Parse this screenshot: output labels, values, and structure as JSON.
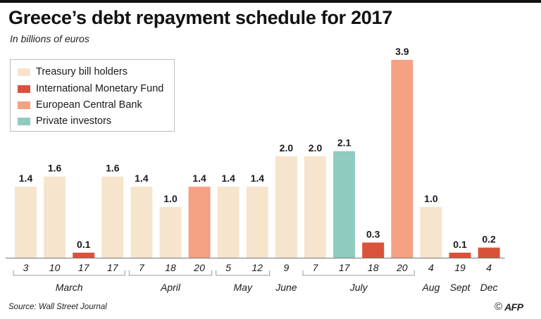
{
  "title": "Greece’s debt repayment schedule for 2017",
  "subtitle": "In billions of euros",
  "source": "Source: Wall Street Journal",
  "credit": {
    "symbol": "©",
    "name": "AFP"
  },
  "legend": [
    {
      "label": "Treasury bill holders",
      "color": "#f7e4cc"
    },
    {
      "label": "International Monetary Fund",
      "color": "#d9533a"
    },
    {
      "label": "European Central Bank",
      "color": "#f5a183"
    },
    {
      "label": "Private investors",
      "color": "#8fcbbf"
    }
  ],
  "chart_data": {
    "type": "bar",
    "title": "Greece’s debt repayment schedule for 2017",
    "subtitle": "In billions of euros",
    "legend_position": "top-left",
    "grid": false,
    "ylim": [
      0,
      3.9
    ],
    "categories": [
      "3",
      "10",
      "17",
      "17",
      "7",
      "18",
      "20",
      "5",
      "12",
      "9",
      "7",
      "17",
      "18",
      "20",
      "4",
      "19",
      "4"
    ],
    "values": [
      1.4,
      1.6,
      0.1,
      1.6,
      1.4,
      1.0,
      1.4,
      1.4,
      1.4,
      2.0,
      2.0,
      2.1,
      0.3,
      3.9,
      1.0,
      0.1,
      0.2
    ],
    "value_labels": [
      "1.4",
      "1.6",
      "0.1",
      "1.6",
      "1.4",
      "1.0",
      "1.4",
      "1.4",
      "1.4",
      "2.0",
      "2.0",
      "2.1",
      "0.3",
      "3.9",
      "1.0",
      "0.1",
      "0.2"
    ],
    "creditor": [
      "Treasury bill holders",
      "Treasury bill holders",
      "International Monetary Fund",
      "Treasury bill holders",
      "Treasury bill holders",
      "Treasury bill holders",
      "European Central Bank",
      "Treasury bill holders",
      "Treasury bill holders",
      "Treasury bill holders",
      "Treasury bill holders",
      "Private investors",
      "International Monetary Fund",
      "European Central Bank",
      "Treasury bill holders",
      "International Monetary Fund",
      "International Monetary Fund"
    ],
    "months": [
      {
        "label": "March",
        "count": 4
      },
      {
        "label": "April",
        "count": 3
      },
      {
        "label": "May",
        "count": 2
      },
      {
        "label": "June",
        "count": 1
      },
      {
        "label": "July",
        "count": 4
      },
      {
        "label": "Aug",
        "count": 1
      },
      {
        "label": "Sept",
        "count": 1
      },
      {
        "label": "Dec",
        "count": 1
      }
    ]
  }
}
